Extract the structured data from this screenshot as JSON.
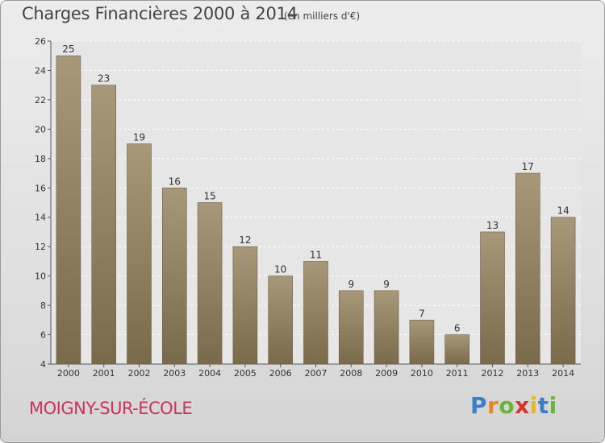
{
  "chart_data": {
    "type": "bar",
    "title": "Charges Financières 2000 à 2014",
    "subtitle": "(en milliers d'€)",
    "categories": [
      "2000",
      "2001",
      "2002",
      "2003",
      "2004",
      "2005",
      "2006",
      "2007",
      "2008",
      "2009",
      "2010",
      "2011",
      "2012",
      "2013",
      "2014"
    ],
    "values": [
      25,
      23,
      19,
      16,
      15,
      12,
      10,
      11,
      9,
      9,
      7,
      6,
      13,
      17,
      14
    ],
    "ylim": [
      4,
      26
    ],
    "yticks": [
      4,
      6,
      8,
      10,
      12,
      14,
      16,
      18,
      20,
      22,
      24,
      26
    ],
    "grid": true,
    "bar_color_top": "#a8987a",
    "bar_color_bottom": "#7a6a4c"
  },
  "footer": {
    "city": "MOIGNY-SUR-ÉCOLE",
    "logo_letters": [
      {
        "ch": "P",
        "color": "#3a7ec9"
      },
      {
        "ch": "r",
        "color": "#e8861f"
      },
      {
        "ch": "o",
        "color": "#6ab43c"
      },
      {
        "ch": "x",
        "color": "#d9342b"
      },
      {
        "ch": "i",
        "color": "#e8b81f"
      },
      {
        "ch": "t",
        "color": "#3a7ec9"
      },
      {
        "ch": "i",
        "color": "#6ab43c"
      }
    ]
  }
}
